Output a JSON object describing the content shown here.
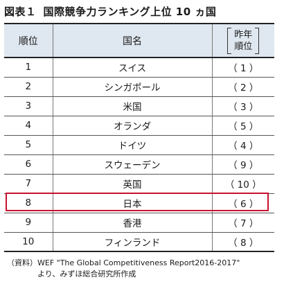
{
  "title": {
    "figure": "図表１",
    "text": "国際競争力ランキング上位 10 ヵ国"
  },
  "table": {
    "headers": {
      "rank": "順位",
      "country": "国名",
      "prev_line1": "昨年",
      "prev_line2": "順位"
    },
    "rows": [
      {
        "rank": "1",
        "country": "スイス",
        "prev": "（ 1 ）"
      },
      {
        "rank": "2",
        "country": "シンガポール",
        "prev": "（ 2 ）"
      },
      {
        "rank": "3",
        "country": "米国",
        "prev": "（ 3 ）"
      },
      {
        "rank": "4",
        "country": "オランダ",
        "prev": "（ 5 ）"
      },
      {
        "rank": "5",
        "country": "ドイツ",
        "prev": "（ 4 ）"
      },
      {
        "rank": "6",
        "country": "スウェーデン",
        "prev": "（ 9 ）"
      },
      {
        "rank": "7",
        "country": "英国",
        "prev": "（ 10 ）"
      },
      {
        "rank": "8",
        "country": "日本",
        "prev": "（ 6 ）"
      },
      {
        "rank": "9",
        "country": "香港",
        "prev": "（ 7 ）"
      },
      {
        "rank": "10",
        "country": "フィンランド",
        "prev": "（ 8 ）"
      }
    ],
    "highlight_row_color": "#c8102e"
  },
  "source": {
    "line1": "（資料）WEF \"The Global Competitiveness Report2016-2017\"",
    "line2": "より、みずほ総合研究所作成"
  }
}
